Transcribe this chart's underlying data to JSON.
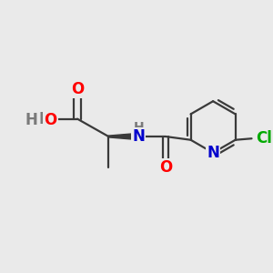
{
  "background_color": "#eaeaea",
  "atom_colors": {
    "O": "#ff0000",
    "N": "#0000cc",
    "Cl": "#00aa00",
    "C": "#3a3a3a",
    "H": "#7a7a7a"
  },
  "bond_color": "#3a3a3a",
  "bond_lw": 1.6,
  "font_size_atoms": 12,
  "font_size_small": 10
}
